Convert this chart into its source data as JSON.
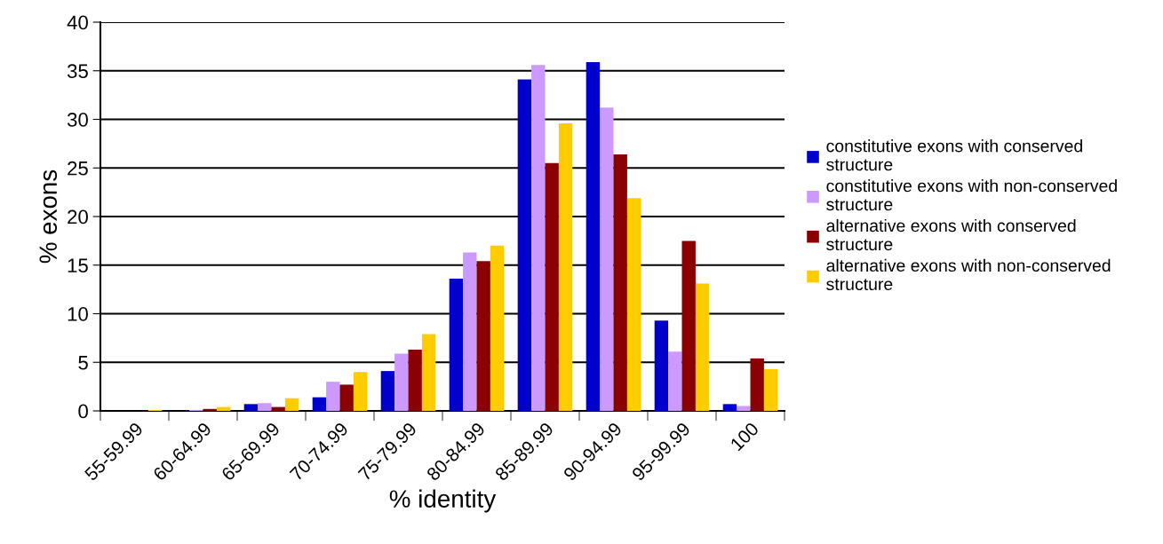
{
  "chart_data": {
    "type": "bar",
    "xlabel": "% identity",
    "ylabel": "% exons",
    "categories": [
      "55-59.99",
      "60-64.99",
      "65-69.99",
      "70-74.99",
      "75-79.99",
      "80-84.99",
      "85-89.99",
      "90-94.99",
      "95-99.99",
      "100"
    ],
    "series": [
      {
        "name": "constitutive exons with conserved\nstructure",
        "color": "#0000cc",
        "values": [
          0,
          0,
          0.7,
          1.4,
          4.1,
          13.6,
          34.1,
          35.9,
          9.3,
          0.7
        ]
      },
      {
        "name": "constitutive exons with non-conserved\nstructure",
        "color": "#cc99ff",
        "values": [
          0,
          0.1,
          0.8,
          3.0,
          5.9,
          16.3,
          35.6,
          31.2,
          6.1,
          0.5
        ]
      },
      {
        "name": "alternative exons with conserved\nstructure",
        "color": "#8b0000",
        "values": [
          0,
          0.2,
          0.4,
          2.7,
          6.3,
          15.4,
          25.5,
          26.4,
          17.5,
          5.4
        ]
      },
      {
        "name": "alternative exons with non-conserved\nstructure",
        "color": "#ffcc00",
        "values": [
          0.1,
          0.4,
          1.3,
          4.0,
          7.9,
          17.0,
          29.6,
          21.9,
          13.1,
          4.3
        ]
      }
    ],
    "ylim": [
      0,
      40
    ],
    "yticks": [
      0,
      5,
      10,
      15,
      20,
      25,
      30,
      35,
      40
    ],
    "grid": "y",
    "legend": "right"
  }
}
